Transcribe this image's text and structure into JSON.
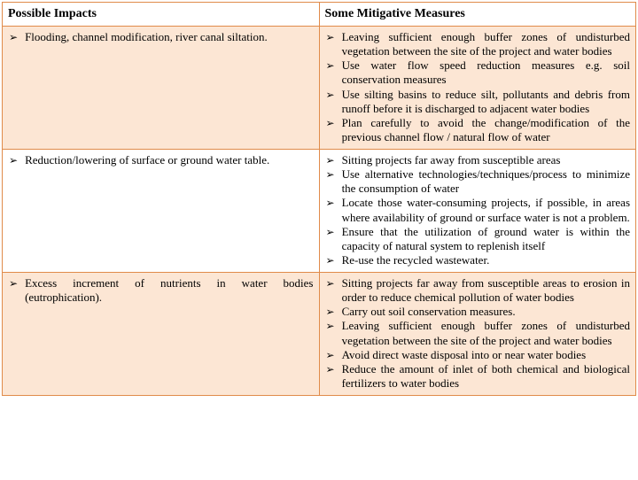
{
  "colors": {
    "border": "#e08b4a",
    "row_odd_bg": "#fce6d4",
    "row_even_bg": "#ffffff",
    "text": "#000000"
  },
  "typography": {
    "font_family": "Times New Roman",
    "header_fontsize_pt": 14,
    "cell_fontsize_pt": 13,
    "header_weight": "bold"
  },
  "table": {
    "headers": {
      "impacts": "Possible Impacts",
      "measures": "Some Mitigative Measures"
    },
    "rows": [
      {
        "impacts_align": "left",
        "impacts": [
          "Flooding, channel modification, river canal siltation."
        ],
        "measures_align": "justify",
        "measures": [
          "Leaving sufficient enough buffer zones of undisturbed vegetation between the site of the project and water bodies",
          "Use water flow speed reduction measures e.g. soil conservation measures",
          "Use silting basins to reduce silt, pollutants and debris from runoff before it is discharged to adjacent water bodies",
          "Plan carefully to avoid the change/modification of the previous channel flow / natural flow of water"
        ]
      },
      {
        "impacts_align": "left",
        "impacts": [
          "Reduction/lowering of surface or ground water table."
        ],
        "measures_align": "justify",
        "measures": [
          "Sitting projects far away from susceptible areas",
          "Use alternative technologies/techniques/process to minimize the consumption of water",
          "Locate those water-consuming projects, if possible, in areas where availability of ground or surface water is not a problem.",
          "Ensure that the utilization of ground water is within the capacity of natural system to replenish itself",
          "Re-use the recycled wastewater."
        ]
      },
      {
        "impacts_align": "justify",
        "impacts": [
          "Excess increment of nutrients in water bodies (eutrophication)."
        ],
        "measures_align": "justify",
        "measures": [
          "Sitting projects far away from susceptible areas to erosion in order to reduce chemical pollution of water bodies",
          "Carry out soil conservation measures.",
          "Leaving sufficient enough buffer zones of undisturbed vegetation between the site of the project and water bodies",
          "Avoid direct waste disposal into or near water bodies",
          "Reduce the amount of inlet of both chemical and biological fertilizers to water bodies"
        ]
      }
    ]
  },
  "bullet_glyph": "➢"
}
